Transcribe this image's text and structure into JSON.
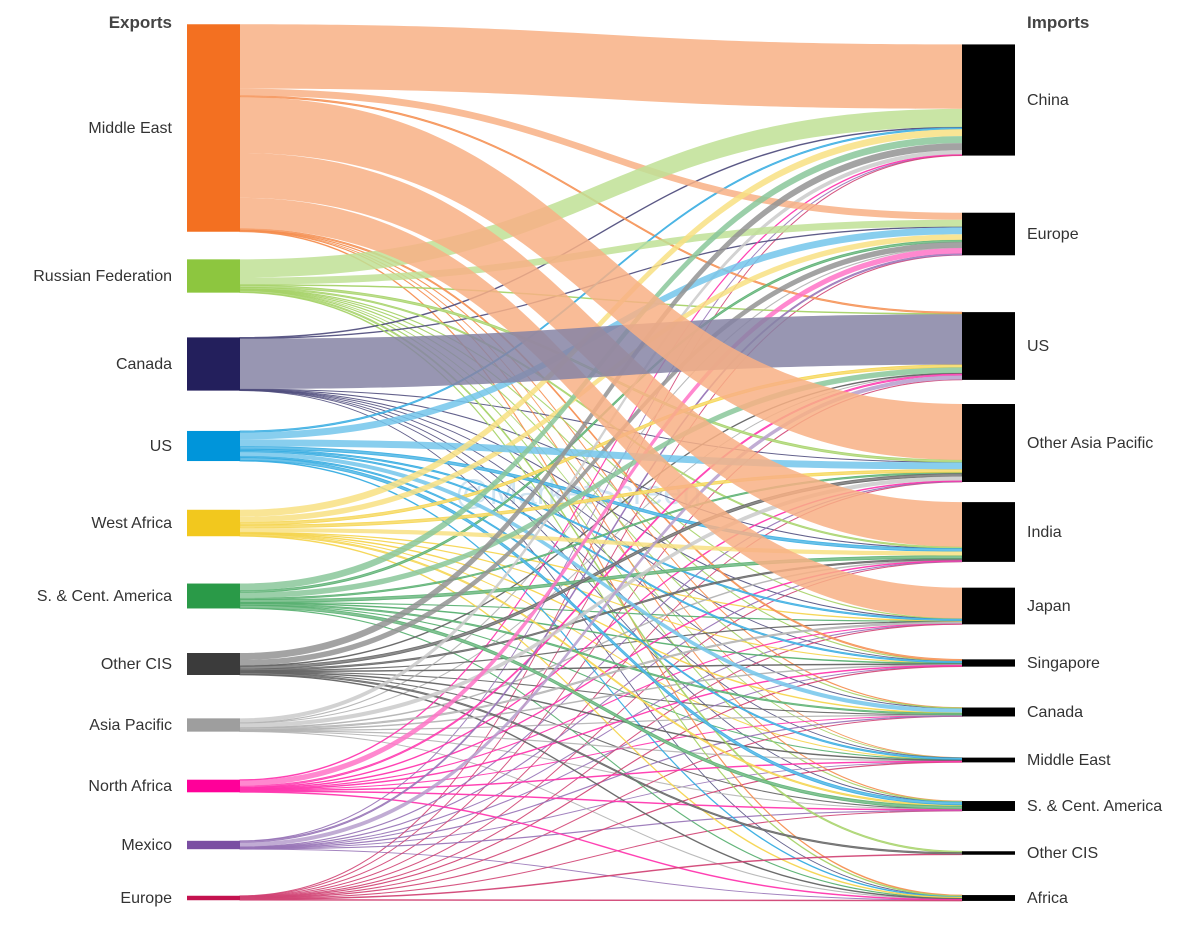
{
  "headers": {
    "left": "Exports",
    "right": "Imports"
  },
  "watermark": "@MarketScreen",
  "sources": [
    {
      "name": "Middle East",
      "color": "#f37021"
    },
    {
      "name": "Russian Federation",
      "color": "#8dc63f"
    },
    {
      "name": "Canada",
      "color": "#231f5c"
    },
    {
      "name": "US",
      "color": "#0095da"
    },
    {
      "name": "West Africa",
      "color": "#f2c81e"
    },
    {
      "name": "S. & Cent. America",
      "color": "#2a9a48"
    },
    {
      "name": "Other CIS",
      "color": "#3b3b3b"
    },
    {
      "name": "Asia Pacific",
      "color": "#9e9e9e"
    },
    {
      "name": "North Africa",
      "color": "#ff0099"
    },
    {
      "name": "Mexico",
      "color": "#7a4ea2"
    },
    {
      "name": "Europe",
      "color": "#c4124f"
    }
  ],
  "targets": [
    {
      "name": "China"
    },
    {
      "name": "Europe"
    },
    {
      "name": "US"
    },
    {
      "name": "Other Asia Pacific"
    },
    {
      "name": "India"
    },
    {
      "name": "Japan"
    },
    {
      "name": "Singapore"
    },
    {
      "name": "Canada"
    },
    {
      "name": "Middle East"
    },
    {
      "name": "S. & Cent. America"
    },
    {
      "name": "Other CIS"
    },
    {
      "name": "Africa"
    }
  ],
  "flows": [
    [
      46,
      5,
      1,
      40,
      32,
      22,
      1,
      0.3,
      0.1,
      0.3,
      0,
      0.5
    ],
    [
      13,
      5,
      0.5,
      1.5,
      1,
      0.3,
      0.3,
      0.3,
      0.1,
      0.3,
      1,
      0.5
    ],
    [
      0.5,
      0.4,
      36,
      0.2,
      0.2,
      0.2,
      0.1,
      0.1,
      0.1,
      0.1,
      0,
      0.1
    ],
    [
      1,
      5,
      0,
      5,
      2,
      1,
      1,
      3,
      1,
      2,
      0,
      0.5
    ],
    [
      5,
      4,
      2,
      2,
      3,
      0.4,
      0.3,
      0.5,
      0.2,
      1,
      0,
      0.5
    ],
    [
      5,
      1.5,
      4,
      1,
      2,
      0.3,
      0.5,
      1,
      0.2,
      2,
      0,
      0.3
    ],
    [
      5,
      4,
      0.5,
      2,
      1,
      0.3,
      0.5,
      0.2,
      0.5,
      0.2,
      1,
      0.5
    ],
    [
      3,
      0.3,
      0.2,
      3,
      0.5,
      1,
      0.5,
      0.3,
      0.3,
      0.2,
      0,
      0.2
    ],
    [
      0.5,
      4,
      1,
      0.5,
      0.5,
      0.3,
      0.5,
      0.2,
      0.5,
      0.5,
      0,
      0.5
    ],
    [
      0.2,
      1,
      3,
      0.3,
      0.3,
      0.2,
      0.2,
      0.3,
      0.1,
      0.3,
      0,
      0.1
    ],
    [
      0.2,
      0.2,
      0.2,
      0.2,
      0.2,
      0.2,
      0.3,
      0.2,
      0.3,
      0.2,
      0.5,
      0.5
    ]
  ],
  "target_node_color": "#000000"
}
